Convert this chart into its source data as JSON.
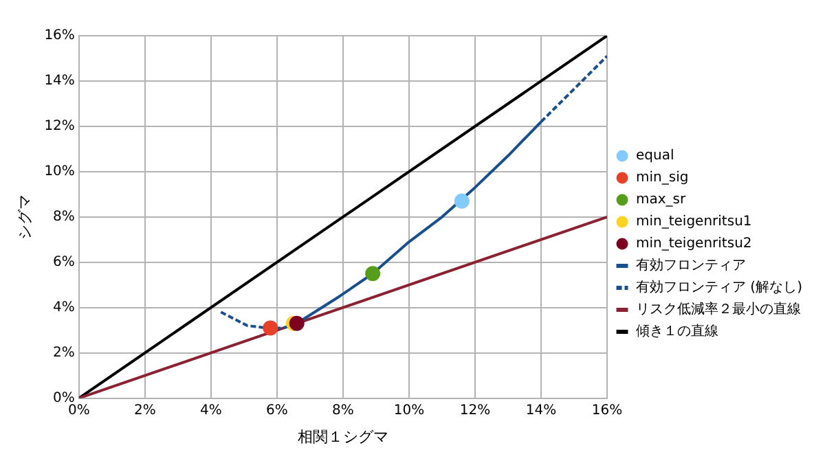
{
  "chart_data": {
    "type": "scatter",
    "xlabel": "相関１シグマ",
    "ylabel": "シグマ",
    "xlim": [
      0,
      16
    ],
    "ylim": [
      0,
      16
    ],
    "xticks": [
      {
        "value": 0,
        "label": "0%"
      },
      {
        "value": 2,
        "label": "2%"
      },
      {
        "value": 4,
        "label": "4%"
      },
      {
        "value": 6,
        "label": "6%"
      },
      {
        "value": 8,
        "label": "8%"
      },
      {
        "value": 10,
        "label": "10%"
      },
      {
        "value": 12,
        "label": "12%"
      },
      {
        "value": 14,
        "label": "14%"
      },
      {
        "value": 16,
        "label": "16%"
      }
    ],
    "yticks": [
      {
        "value": 0,
        "label": "0%"
      },
      {
        "value": 2,
        "label": "2%"
      },
      {
        "value": 4,
        "label": "4%"
      },
      {
        "value": 6,
        "label": "6%"
      },
      {
        "value": 8,
        "label": "8%"
      },
      {
        "value": 10,
        "label": "10%"
      },
      {
        "value": 12,
        "label": "12%"
      },
      {
        "value": 14,
        "label": "14%"
      },
      {
        "value": 16,
        "label": "16%"
      }
    ],
    "grid": true,
    "legend": "right",
    "marker": "circle",
    "series": [
      {
        "name": "equal",
        "type": "scatter",
        "color": "#83caff",
        "x": [
          11.6
        ],
        "values": [
          8.7
        ]
      },
      {
        "name": "min_sig",
        "type": "scatter",
        "color": "#e8412a",
        "x": [
          5.8
        ],
        "values": [
          3.1
        ]
      },
      {
        "name": "max_sr",
        "type": "scatter",
        "color": "#579d1c",
        "x": [
          8.9
        ],
        "values": [
          5.5
        ]
      },
      {
        "name": "min_teigenritsu1",
        "type": "scatter",
        "color": "#ffd320",
        "x": [
          6.5
        ],
        "values": [
          3.3
        ]
      },
      {
        "name": "min_teigenritsu2",
        "type": "scatter",
        "color": "#7e0021",
        "x": [
          6.6
        ],
        "values": [
          3.3
        ]
      },
      {
        "name": "有効フロンティア",
        "type": "line",
        "marker": "none",
        "line_style": "solid",
        "color": "#174f8f",
        "x": [
          6.6,
          7.9,
          8.9,
          10.0,
          11.0,
          12.0,
          13.0,
          14.0
        ],
        "values": [
          3.3,
          4.5,
          5.5,
          6.9,
          8.0,
          9.3,
          10.7,
          12.2
        ]
      },
      {
        "name": "有効フロンティア (解なし)",
        "type": "line",
        "marker": "none",
        "line_style": "dashed",
        "color": "#174f8f",
        "x": [
          4.3,
          5.1,
          5.7,
          6.2,
          6.6,
          null,
          14.0,
          14.9,
          16.0
        ],
        "values": [
          3.8,
          3.2,
          3.1,
          3.1,
          3.3,
          null,
          12.2,
          13.5,
          15.1
        ]
      },
      {
        "name": "リスク低減率２最小の直線",
        "type": "line",
        "marker": "none",
        "line_style": "solid",
        "color": "#8b2231",
        "x": [
          0,
          16
        ],
        "values": [
          0,
          8
        ]
      },
      {
        "name": "傾き１の直線",
        "type": "line",
        "marker": "none",
        "line_style": "solid",
        "color": "#000000",
        "x": [
          0,
          16
        ],
        "values": [
          0,
          16
        ]
      }
    ]
  }
}
